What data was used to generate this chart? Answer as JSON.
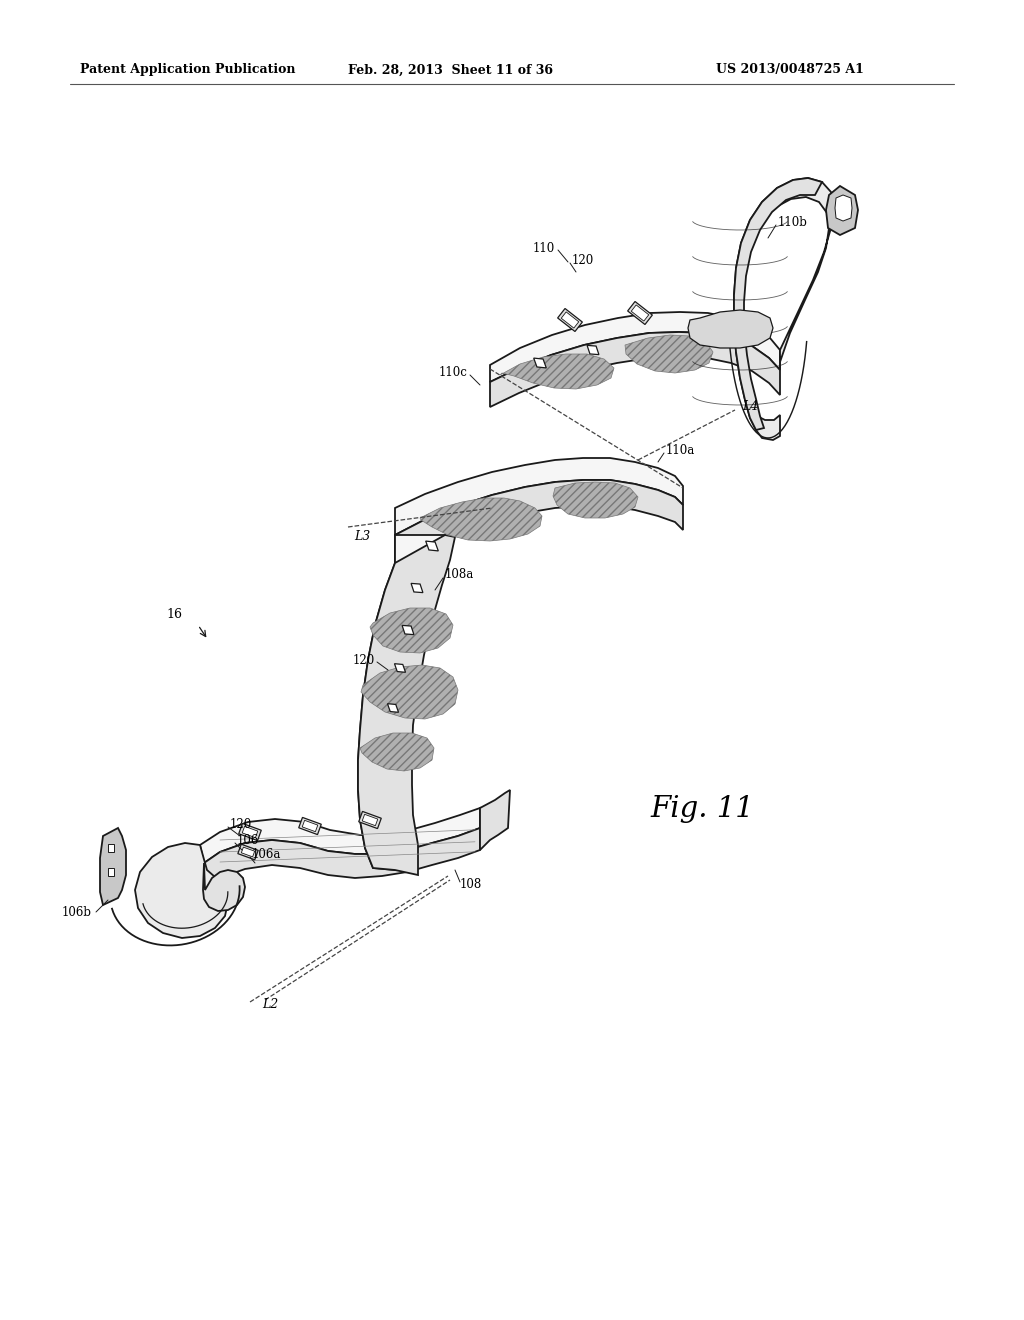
{
  "header_left": "Patent Application Publication",
  "header_center": "Feb. 28, 2013  Sheet 11 of 36",
  "header_right": "US 2013/0048725 A1",
  "fig_label": "Fig. 11",
  "background": "#ffffff",
  "line_color": "#1a1a1a",
  "lw_main": 1.3,
  "fill_light": "#f6f6f6",
  "fill_medium": "#e2e2e2",
  "fill_dark": "#c8c8c8",
  "fill_blob": "#b0b0b0",
  "fill_cap": "#ebebeb"
}
